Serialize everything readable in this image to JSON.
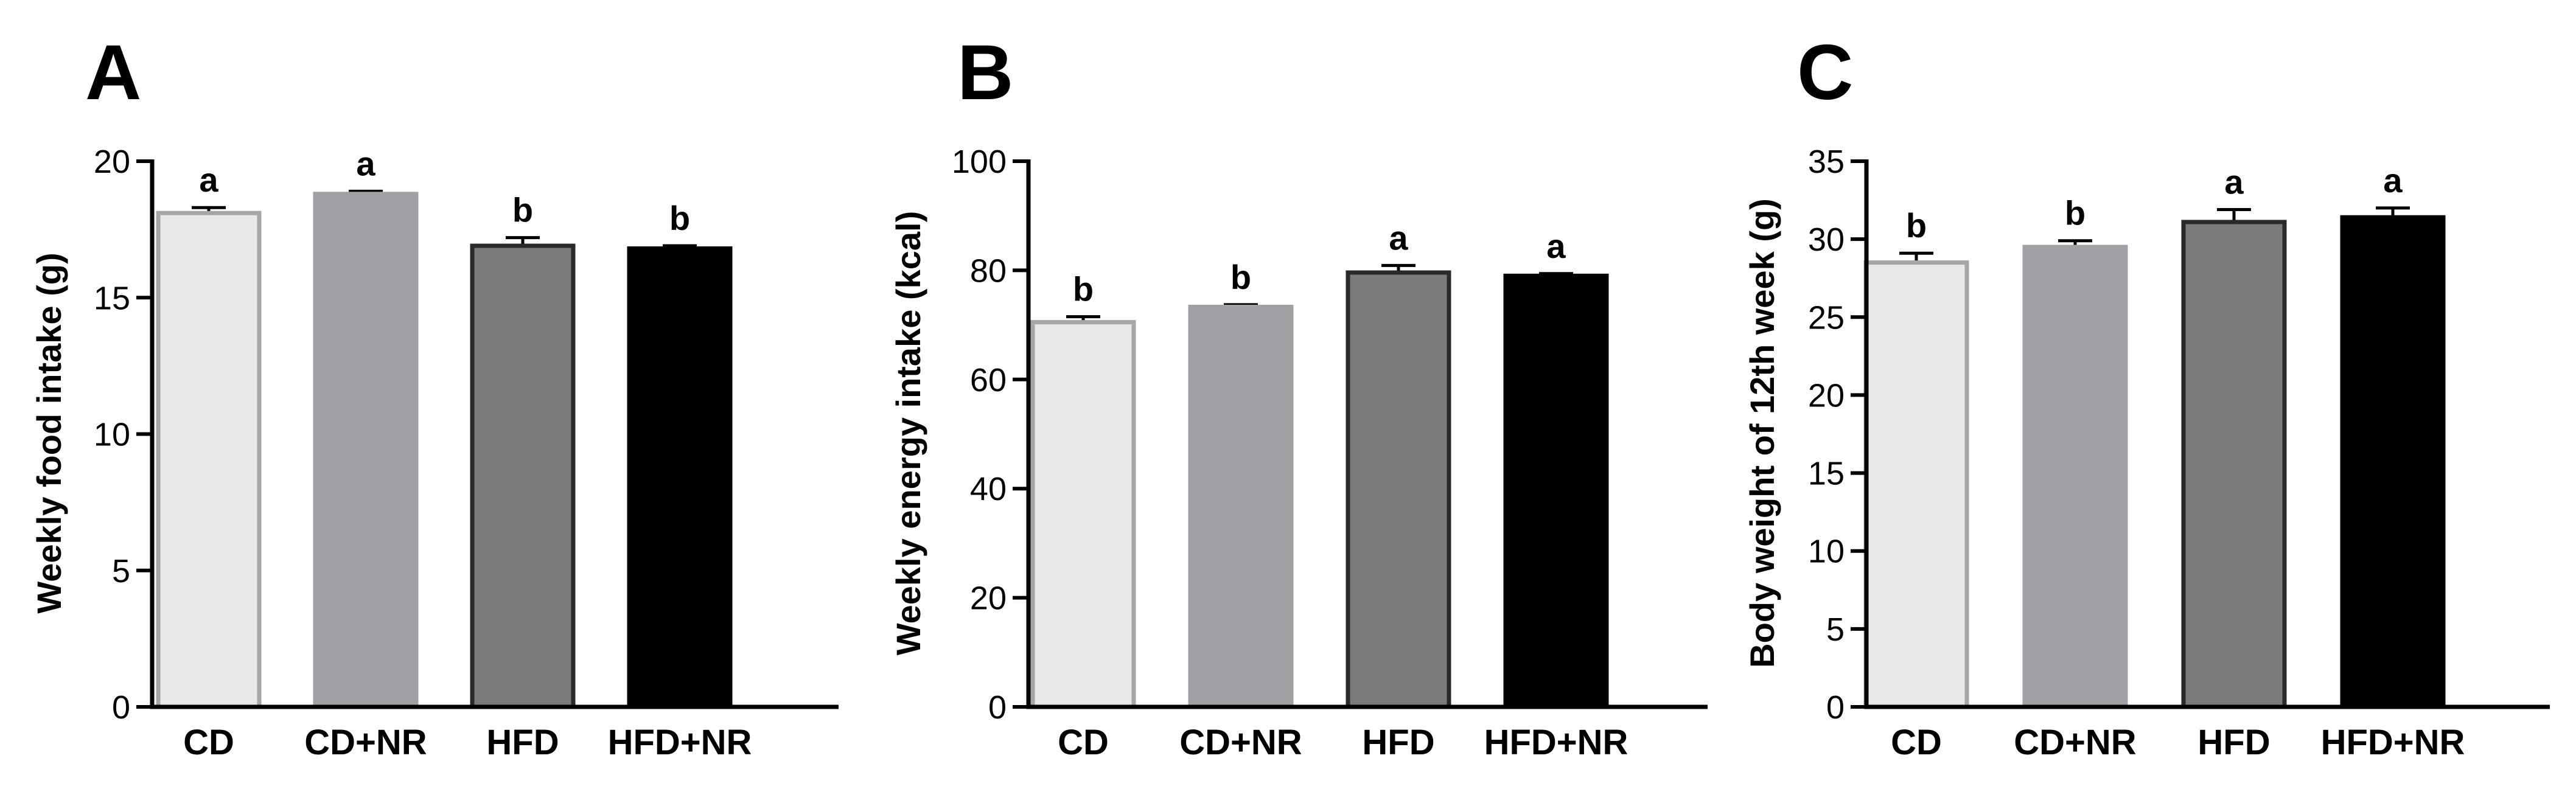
{
  "chart_data": [
    {
      "panel_letter": "A",
      "type": "bar",
      "ylabel": "Weekly food intake (g)",
      "categories": [
        "CD",
        "CD+NR",
        "HFD",
        "HFD+NR"
      ],
      "values": [
        18.1,
        18.8,
        16.9,
        16.8
      ],
      "errors": [
        0.2,
        0.1,
        0.3,
        0.1
      ],
      "significance": [
        "a",
        "a",
        "b",
        "b"
      ],
      "ylim": [
        0,
        20
      ],
      "yticks": [
        "0",
        "5",
        "10",
        "15",
        "20"
      ],
      "ytick_values": [
        0,
        5,
        10,
        15,
        20
      ]
    },
    {
      "panel_letter": "B",
      "type": "bar",
      "ylabel": "Weekly energy intake (kcal)",
      "categories": [
        "CD",
        "CD+NR",
        "HFD",
        "HFD+NR"
      ],
      "values": [
        70.5,
        73.3,
        79.6,
        79.0
      ],
      "errors": [
        1.0,
        0.4,
        1.3,
        0.4
      ],
      "significance": [
        "b",
        "b",
        "a",
        "a"
      ],
      "ylim": [
        0,
        100
      ],
      "yticks": [
        "0",
        "20",
        "40",
        "60",
        "80",
        "100"
      ],
      "ytick_values": [
        0,
        20,
        40,
        60,
        80,
        100
      ]
    },
    {
      "panel_letter": "C",
      "type": "bar",
      "ylabel": "Body weight of 12th week (g)",
      "categories": [
        "CD",
        "CD+NR",
        "HFD",
        "HFD+NR"
      ],
      "values": [
        28.5,
        29.5,
        31.1,
        31.4
      ],
      "errors": [
        0.6,
        0.4,
        0.8,
        0.6
      ],
      "significance": [
        "b",
        "b",
        "a",
        "a"
      ],
      "ylim": [
        0,
        35
      ],
      "yticks": [
        "0",
        "5",
        "10",
        "15",
        "20",
        "25",
        "30",
        "35"
      ],
      "ytick_values": [
        0,
        5,
        10,
        15,
        20,
        25,
        30,
        35
      ]
    }
  ],
  "bar_styles": [
    {
      "fill": "#e8e8e8",
      "stroke": "#a6a6a6"
    },
    {
      "fill": "#a1a0a5",
      "stroke": "#a1a0a5"
    },
    {
      "fill": "#7b7b7b",
      "stroke": "#2a2a2a"
    },
    {
      "fill": "#000000",
      "stroke": "#000000"
    }
  ],
  "colors": {
    "axis": "#000000",
    "text": "#000000"
  }
}
